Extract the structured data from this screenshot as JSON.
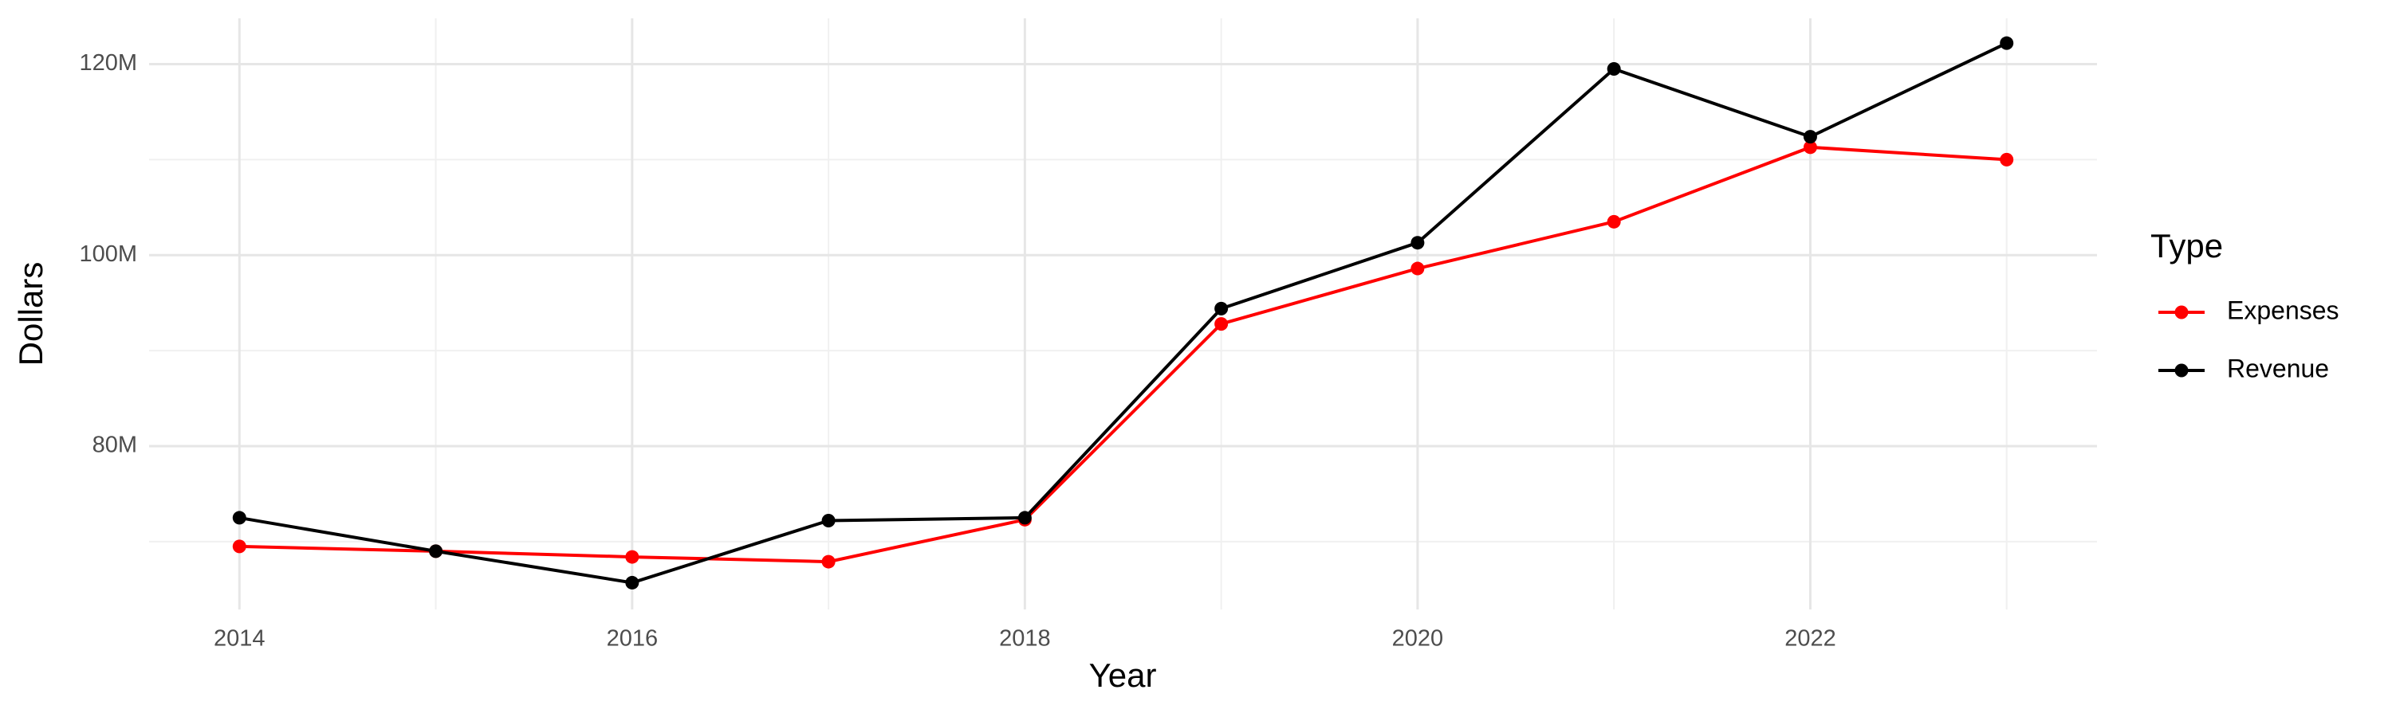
{
  "chart_data": {
    "type": "line",
    "x_label": "Year",
    "y_label": "Dollars",
    "legend_title": "Type",
    "x": [
      2014,
      2015,
      2016,
      2017,
      2018,
      2019,
      2020,
      2021,
      2022,
      2023
    ],
    "series": [
      {
        "name": "Expenses",
        "color": "#ff0000",
        "values": [
          69500000,
          69000000,
          68400000,
          67900000,
          72300000,
          92800000,
          98600000,
          103500000,
          111300000,
          110000000
        ]
      },
      {
        "name": "Revenue",
        "color": "#000000",
        "values": [
          72500000,
          69000000,
          65700000,
          72200000,
          72500000,
          94400000,
          101300000,
          119500000,
          112400000,
          122200000
        ]
      }
    ],
    "xlim": [
      2013.54,
      2023.46
    ],
    "ylim": [
      62900000,
      124800000
    ],
    "xticks": [
      2014,
      2016,
      2018,
      2020,
      2022
    ],
    "xminor": [
      2015,
      2017,
      2019,
      2021,
      2023
    ],
    "yticks": [
      {
        "value": 80000000,
        "label": "80M"
      },
      {
        "value": 100000000,
        "label": "100M"
      },
      {
        "value": 120000000,
        "label": "120M"
      }
    ],
    "yminor": [
      70000000,
      90000000,
      110000000
    ],
    "grid": true,
    "legend_position": "right"
  }
}
